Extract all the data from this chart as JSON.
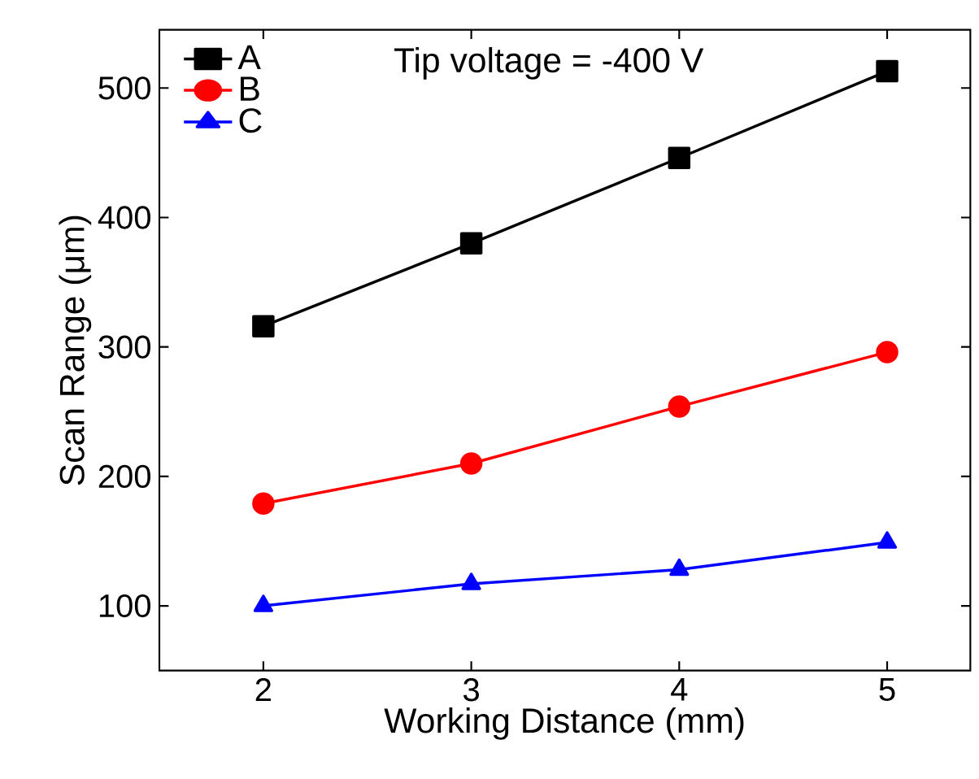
{
  "chart_data": {
    "type": "line",
    "xlabel": "Working Distance (mm)",
    "ylabel": "Scan Range (μm)",
    "annotations": [
      "Tip voltage = -400 V"
    ],
    "x": [
      2,
      3,
      4,
      5
    ],
    "series": [
      {
        "name": "A",
        "color": "#000000",
        "marker": "square",
        "values": [
          316,
          380,
          446,
          513
        ]
      },
      {
        "name": "B",
        "color": "#ff0000",
        "marker": "circle",
        "values": [
          179,
          210,
          254,
          296
        ]
      },
      {
        "name": "C",
        "color": "#0000ff",
        "marker": "triangle",
        "values": [
          100,
          117,
          128,
          149
        ]
      }
    ],
    "xlim": [
      1.5,
      5.4
    ],
    "ylim": [
      50,
      545
    ],
    "xticks": [
      2,
      3,
      4,
      5
    ],
    "yticks": [
      100,
      200,
      300,
      400,
      500
    ],
    "legend": "top left",
    "grid": false,
    "line_style": "solid"
  }
}
